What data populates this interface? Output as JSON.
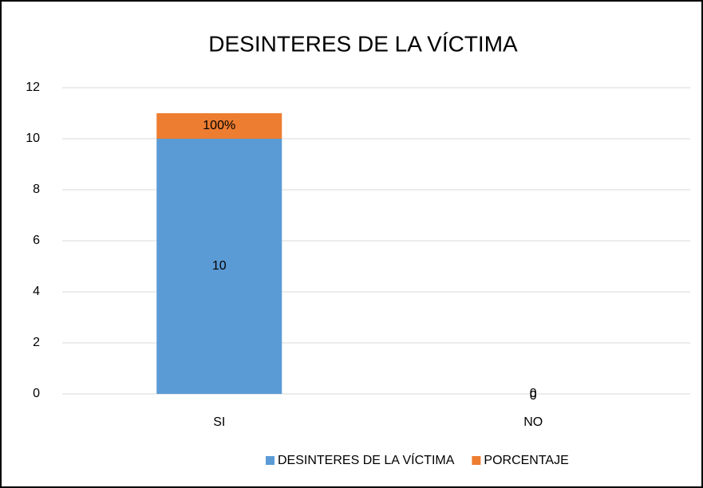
{
  "chart_data": {
    "type": "stacked_bar",
    "title": "DESINTERES DE LA VÍCTIMA",
    "categories": [
      "SI",
      "NO"
    ],
    "series": [
      {
        "name": "DESINTERES DE LA VÍCTIMA",
        "color": "#5b9bd5",
        "values": [
          10,
          0
        ]
      },
      {
        "name": "PORCENTAJE",
        "color": "#ed7d31",
        "values": [
          1,
          0
        ],
        "value_labels": [
          "100%",
          "0"
        ]
      }
    ],
    "ylim": [
      0,
      12
    ],
    "yticks": [
      0,
      2,
      4,
      6,
      8,
      10,
      12
    ],
    "grid": true,
    "legend": "bottom"
  }
}
